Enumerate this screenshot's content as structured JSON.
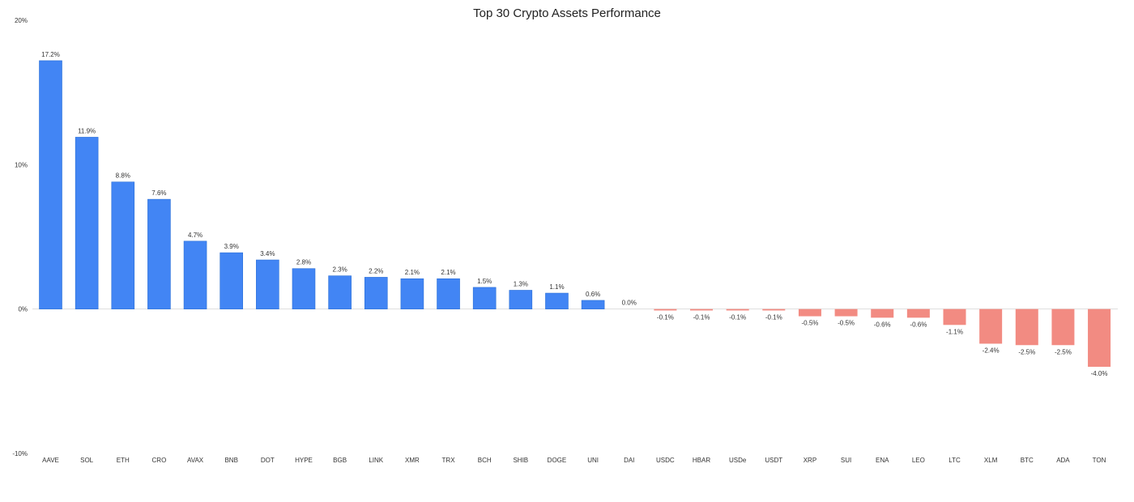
{
  "chart_data": {
    "type": "bar",
    "title": "Top 30 Crypto Assets Performance",
    "xlabel": "",
    "ylabel": "",
    "ylim": [
      -10,
      20
    ],
    "yticks": [
      20,
      10,
      0,
      -10
    ],
    "ytick_labels": [
      "20%",
      "10%",
      "0%",
      "-10%"
    ],
    "grid": false,
    "legend": "none",
    "colors": {
      "positive": "#4285f4",
      "positive_edge": "#2a6fd6",
      "negative": "#f28b82",
      "zero_line": "#dddddd"
    },
    "categories": [
      "AAVE",
      "SOL",
      "ETH",
      "CRO",
      "AVAX",
      "BNB",
      "DOT",
      "HYPE",
      "BGB",
      "LINK",
      "XMR",
      "TRX",
      "BCH",
      "SHIB",
      "DOGE",
      "UNI",
      "DAI",
      "USDC",
      "HBAR",
      "USDe",
      "USDT",
      "XRP",
      "SUI",
      "ENA",
      "LEO",
      "LTC",
      "XLM",
      "BTC",
      "ADA",
      "TON"
    ],
    "values": [
      17.2,
      11.9,
      8.8,
      7.6,
      4.7,
      3.9,
      3.4,
      2.8,
      2.3,
      2.2,
      2.1,
      2.1,
      1.5,
      1.3,
      1.1,
      0.6,
      0.0,
      -0.1,
      -0.1,
      -0.1,
      -0.1,
      -0.5,
      -0.5,
      -0.6,
      -0.6,
      -1.1,
      -2.4,
      -2.5,
      -2.5,
      -4.0
    ],
    "data_labels": [
      "17.2%",
      "11.9%",
      "8.8%",
      "7.6%",
      "4.7%",
      "3.9%",
      "3.4%",
      "2.8%",
      "2.3%",
      "2.2%",
      "2.1%",
      "2.1%",
      "1.5%",
      "1.3%",
      "1.1%",
      "0.6%",
      "0.0%",
      "-0.1%",
      "-0.1%",
      "-0.1%",
      "-0.1%",
      "-0.5%",
      "-0.5%",
      "-0.6%",
      "-0.6%",
      "-1.1%",
      "-2.4%",
      "-2.5%",
      "-2.5%",
      "-4.0%"
    ]
  }
}
